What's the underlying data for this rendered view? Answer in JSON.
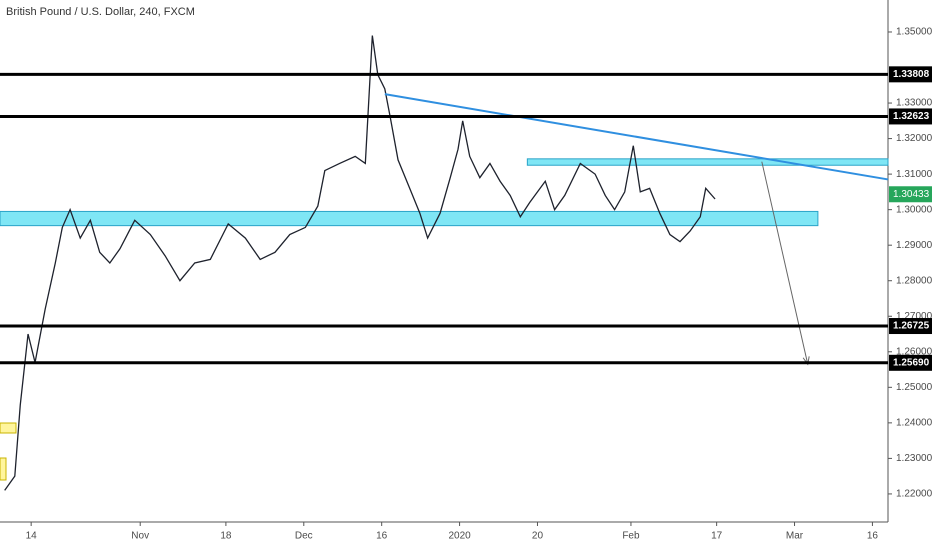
{
  "chart_data": {
    "type": "line",
    "title": "British Pound / U.S. Dollar, 240, FXCM",
    "x": [
      -3.4,
      -2.1,
      -1.4,
      -0.4,
      0.5,
      1.8,
      3.1,
      4.0,
      5.0,
      6.3,
      7.6,
      8.8,
      10.1,
      11.4,
      13.3,
      15.3,
      17.2,
      19.1,
      21.0,
      23.0,
      25.3,
      27.5,
      29.4,
      31.3,
      33.2,
      35.2,
      36.8,
      37.7,
      39.6,
      41.6,
      42.9,
      43.8,
      44.5,
      45.4,
      46.1,
      47.1,
      48.6,
      49.9,
      50.9,
      52.5,
      53.8,
      54.8,
      55.4,
      56.3,
      57.6,
      58.9,
      60.2,
      61.5,
      62.8,
      64.0,
      66.0,
      67.2,
      68.5,
      70.5,
      72.4,
      73.7,
      74.9,
      76.2,
      77.3,
      78.2,
      79.4,
      80.7,
      82.0,
      83.3,
      84.6,
      85.9,
      86.6,
      87.8
    ],
    "values": [
      1.221,
      1.225,
      1.245,
      1.265,
      1.257,
      1.272,
      1.285,
      1.295,
      1.3,
      1.292,
      1.297,
      1.288,
      1.285,
      1.289,
      1.297,
      1.293,
      1.287,
      1.28,
      1.285,
      1.286,
      1.296,
      1.292,
      1.286,
      1.288,
      1.293,
      1.295,
      1.301,
      1.311,
      1.313,
      1.315,
      1.313,
      1.349,
      1.338,
      1.334,
      1.326,
      1.314,
      1.306,
      1.299,
      1.292,
      1.299,
      1.309,
      1.317,
      1.325,
      1.315,
      1.309,
      1.313,
      1.308,
      1.304,
      1.298,
      1.302,
      1.308,
      1.3,
      1.304,
      1.313,
      1.31,
      1.304,
      1.3,
      1.305,
      1.318,
      1.305,
      1.306,
      1.299,
      1.293,
      1.291,
      1.294,
      1.298,
      1.306,
      1.303
    ],
    "color": "#1e222d",
    "xlim": [
      -4,
      110
    ],
    "ylim": [
      1.2121,
      1.359
    ],
    "xticks": [
      {
        "value": 0,
        "label": "14"
      },
      {
        "value": 14,
        "label": "Nov"
      },
      {
        "value": 25,
        "label": "18"
      },
      {
        "value": 35,
        "label": "Dec"
      },
      {
        "value": 45,
        "label": "16"
      },
      {
        "value": 55,
        "label": "2020"
      },
      {
        "value": 65,
        "label": "20"
      },
      {
        "value": 77,
        "label": "Feb"
      },
      {
        "value": 88,
        "label": "17"
      },
      {
        "value": 98,
        "label": "Mar"
      },
      {
        "value": 108,
        "label": "16"
      }
    ],
    "yticks": [
      {
        "value": 1.22,
        "label": "1.22000"
      },
      {
        "value": 1.23,
        "label": "1.23000"
      },
      {
        "value": 1.24,
        "label": "1.24000"
      },
      {
        "value": 1.25,
        "label": "1.25000"
      },
      {
        "value": 1.26,
        "label": "1.26000"
      },
      {
        "value": 1.27,
        "label": "1.27000"
      },
      {
        "value": 1.28,
        "label": "1.28000"
      },
      {
        "value": 1.29,
        "label": "1.29000"
      },
      {
        "value": 1.3,
        "label": "1.30000"
      },
      {
        "value": 1.31,
        "label": "1.31000"
      },
      {
        "value": 1.32,
        "label": "1.32000"
      },
      {
        "value": 1.33,
        "label": "1.33000"
      },
      {
        "value": 1.35,
        "label": "1.35000"
      }
    ],
    "levels": [
      {
        "value": 1.33808,
        "label": "1.33808"
      },
      {
        "value": 1.32623,
        "label": "1.32623"
      },
      {
        "value": 1.26725,
        "label": "1.26725"
      },
      {
        "value": 1.2569,
        "label": "1.25690"
      }
    ],
    "last_price": {
      "value": 1.30433,
      "label": "1.30433"
    },
    "last_price_color": "#26a65b",
    "zones": [
      {
        "x1": -4,
        "x2": 101,
        "y1": 1.2955,
        "y2": 1.2995
      },
      {
        "x1": 63.7,
        "x2": 110,
        "y1": 1.3125,
        "y2": 1.3143
      }
    ],
    "zone_color": "#7fe6f5",
    "trendline": {
      "x1": 45.4,
      "y1": 1.3325,
      "x2": 110,
      "y2": 1.3085,
      "color": "#2f8fe0"
    },
    "arrow": {
      "x1": 93.8,
      "y1": 1.3135,
      "x2": 99.7,
      "y2": 1.2565
    }
  }
}
